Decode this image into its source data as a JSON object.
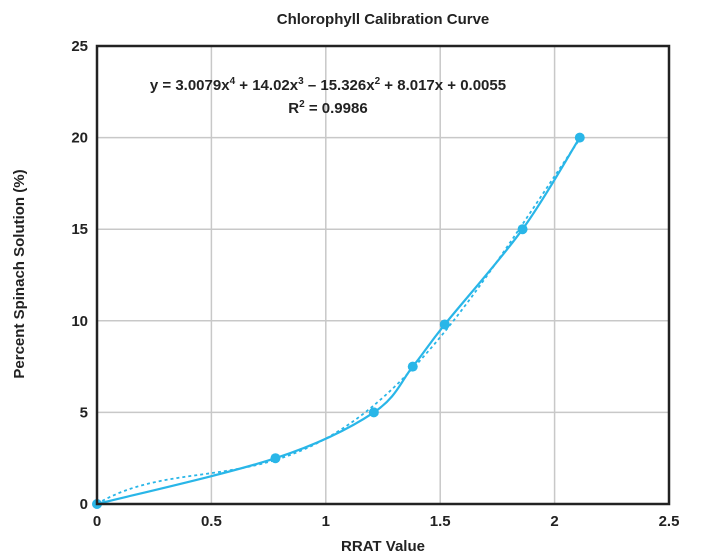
{
  "chart_data": {
    "type": "scatter",
    "title": "Chlorophyll Calibration Curve",
    "xlabel": "RRAT Value",
    "ylabel": "Percent Spinach Solution (%)",
    "xlim": [
      0,
      2.5
    ],
    "ylim": [
      0,
      25
    ],
    "xticks": [
      "0",
      "0.5",
      "1",
      "1.5",
      "2",
      "2.5"
    ],
    "yticks": [
      "0",
      "5",
      "10",
      "15",
      "20",
      "25"
    ],
    "grid": true,
    "color": "#29b6e8",
    "series": [
      {
        "points": [
          {
            "x": 0,
            "y": 0
          },
          {
            "x": 0.78,
            "y": 2.5
          },
          {
            "x": 1.21,
            "y": 5
          },
          {
            "x": 1.38,
            "y": 7.5
          },
          {
            "x": 1.52,
            "y": 9.8
          },
          {
            "x": 1.86,
            "y": 15
          },
          {
            "x": 2.11,
            "y": 20
          }
        ]
      }
    ],
    "trendline": {
      "type": "polynomial",
      "order": 4,
      "equation_line1_a": "y = 3.0079x",
      "equation_line1_sup_a": "4",
      "equation_line1_b": " + 14.02x",
      "equation_line1_sup_b": "3",
      "equation_line1_c": " – 15.326x",
      "equation_line1_sup_c": "2",
      "equation_line1_d": " + 8.017x + 0.0055",
      "equation_line2_a": "R",
      "equation_line2_sup": "2",
      "equation_line2_b": " = 0.9986"
    }
  }
}
